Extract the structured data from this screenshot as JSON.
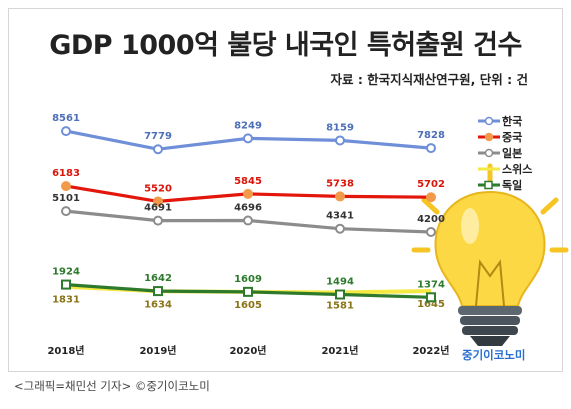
{
  "chart_data": {
    "type": "line",
    "title": "GDP 1000억 불당 내국인 특허출원 건수",
    "subtitle": "자료 : 한국지식재산연구원, 단위 : 건",
    "categories": [
      "2018년",
      "2019년",
      "2020년",
      "2021년",
      "2022년"
    ],
    "ylim": [
      1300,
      9000
    ],
    "grid": false,
    "legend_position": "right",
    "series": [
      {
        "name": "한국",
        "color": "#6f8fd8",
        "label_color": "#4d6fb8",
        "values": [
          8561,
          7779,
          8249,
          8159,
          7828
        ]
      },
      {
        "name": "중국",
        "color": "#e3160b",
        "label_color": "#d9150a",
        "marker_color": "#f29a4a",
        "values": [
          6183,
          5520,
          5845,
          5738,
          5702
        ]
      },
      {
        "name": "일본",
        "color": "#8c8c8c",
        "label_color": "#333333",
        "values": [
          5101,
          4691,
          4696,
          4341,
          4200
        ]
      },
      {
        "name": "스위스",
        "color": "#f4e842",
        "label_color": "#8a7418",
        "values": [
          1831,
          1634,
          1605,
          1581,
          1645
        ]
      },
      {
        "name": "독일",
        "color": "#2d7a2d",
        "label_color": "#2d7a2d",
        "values": [
          1924,
          1642,
          1609,
          1494,
          1374
        ]
      }
    ]
  },
  "brand": "중기이코노미",
  "caption": "<그래픽=채민선 기자>   ©중기이코노미"
}
